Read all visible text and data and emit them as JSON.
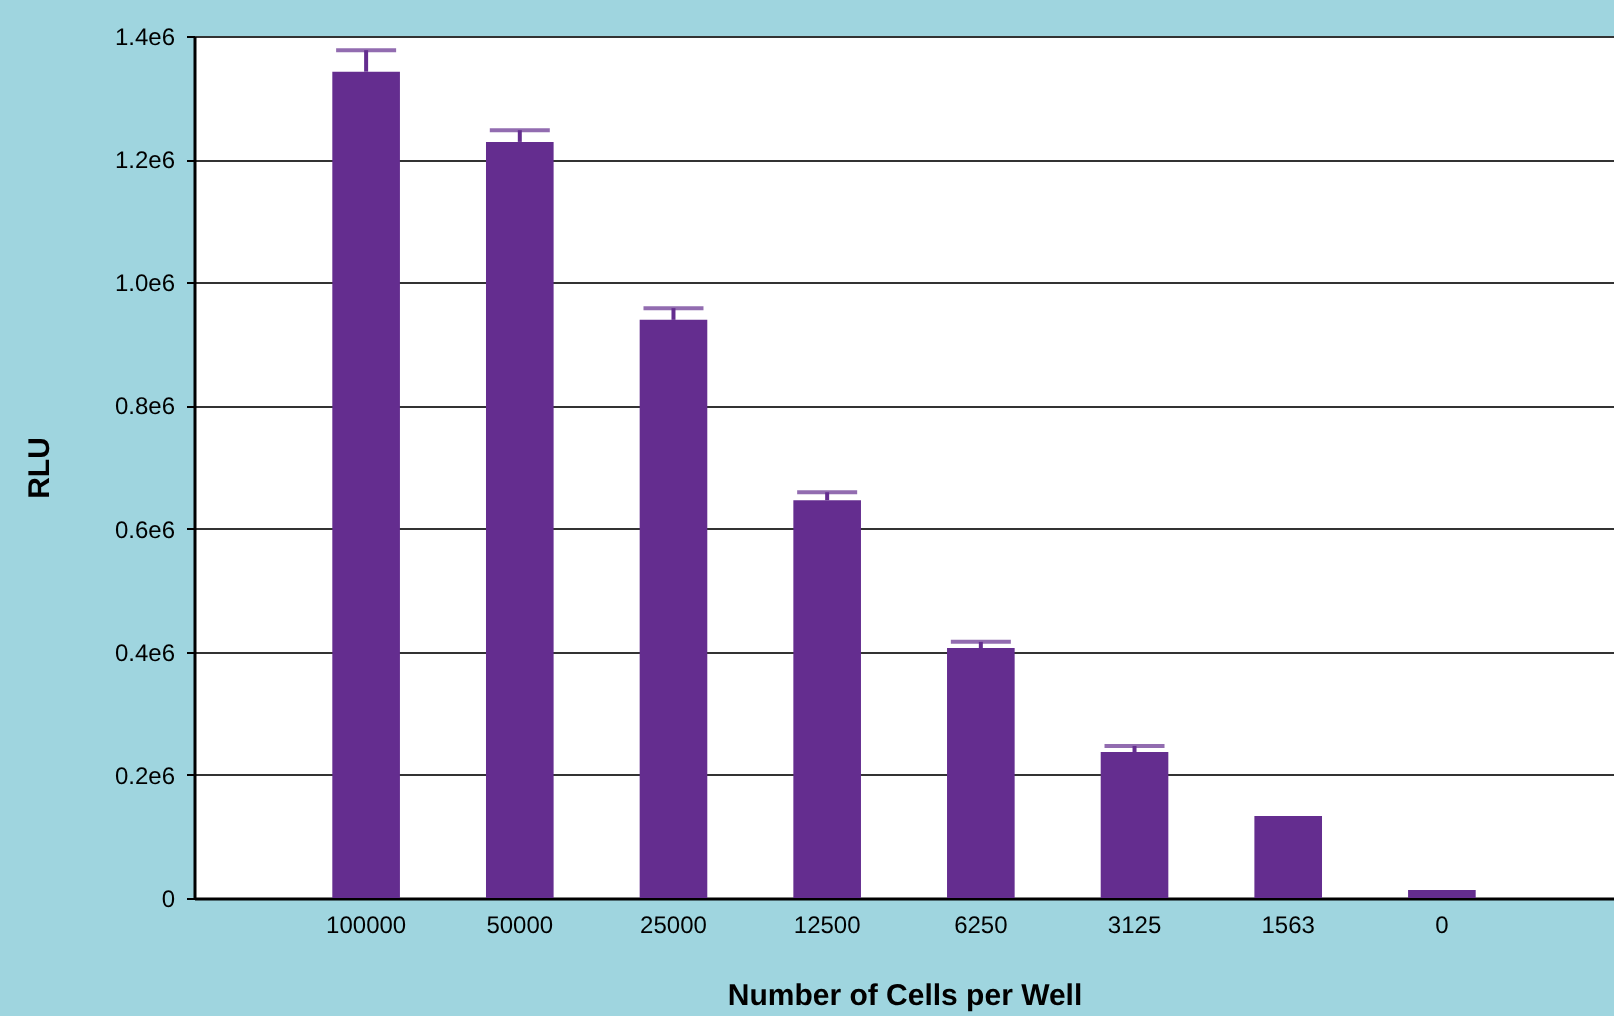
{
  "chart_data": {
    "type": "bar",
    "xlabel": "Number of Cells per Well",
    "ylabel": "RLU",
    "categories": [
      "100000",
      "50000",
      "25000",
      "12500",
      "6250",
      "3125",
      "1563",
      "0"
    ],
    "values": [
      1342000,
      1228000,
      939000,
      646000,
      406000,
      237000,
      133000,
      13000
    ],
    "errors": [
      [
        1342000,
        1377000
      ],
      [
        1228000,
        1247000
      ],
      [
        939000,
        958000
      ],
      [
        646000,
        659000
      ],
      [
        406000,
        416000
      ],
      [
        237000,
        247000
      ],
      null,
      null
    ],
    "color": "#642d8f",
    "ylim": [
      0,
      1400000
    ],
    "yticks": [
      0,
      {
        "value": 200000,
        "label": "0.2e6"
      },
      {
        "value": 400000,
        "label": "0.4e6"
      },
      {
        "value": 600000,
        "label": "0.6e6"
      },
      {
        "value": 800000,
        "label": "0.8e6"
      },
      {
        "value": 1000000,
        "label": "1.0e6"
      },
      {
        "value": 1200000,
        "label": "1.2e6"
      },
      {
        "value": 1400000,
        "label": "1.4e6"
      }
    ],
    "grid": "y"
  }
}
